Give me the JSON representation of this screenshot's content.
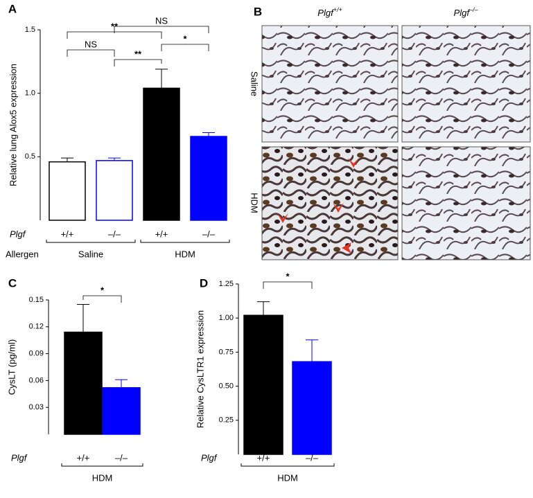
{
  "chart_data": [
    {
      "type": "bar",
      "panel": "A",
      "ylabel": "Relative lung Alox5 expression",
      "categories": [
        "+/+",
        "–/–",
        "+/+",
        "–/–"
      ],
      "row_label": "Plgf",
      "values": [
        0.46,
        0.47,
        1.04,
        0.66
      ],
      "errors": [
        0.03,
        0.02,
        0.15,
        0.03
      ],
      "fills": [
        "#ffffff",
        "#ffffff",
        "#000000",
        "#0000ff"
      ],
      "strokes": [
        "#000000",
        "#0000ff",
        "#000000",
        "#0000ff"
      ],
      "ylim": [
        0,
        1.5
      ],
      "yticks": [
        0.5,
        {
          "value": 1.0,
          "label": "1.0"
        },
        1.5
      ],
      "group_title": "Allergen",
      "groups": [
        {
          "label": "Saline",
          "members": [
            0,
            1
          ]
        },
        {
          "label": "HDM",
          "members": [
            2,
            3
          ]
        }
      ],
      "comparisons": [
        {
          "label": "**",
          "pair": [
            0,
            2
          ]
        },
        {
          "label": "NS",
          "pair": [
            1,
            3
          ]
        },
        {
          "label": "NS",
          "pair": [
            0,
            1
          ]
        },
        {
          "label": "**",
          "pair": [
            1,
            2
          ]
        },
        {
          "label": "*",
          "pair": [
            2,
            3
          ]
        }
      ]
    },
    {
      "type": "bar",
      "panel": "C",
      "ylabel": "CysLT (pg/ml)",
      "categories": [
        "+/+",
        "–/–"
      ],
      "row_label": "Plgf",
      "values": [
        0.114,
        0.052
      ],
      "errors": [
        0.031,
        0.009
      ],
      "fills": [
        "#000000",
        "#0000ff"
      ],
      "strokes": [
        "#000000",
        "#0000ff"
      ],
      "ylim": [
        0,
        0.15
      ],
      "yticks": [
        0.03,
        0.06,
        0.09,
        0.12,
        0.15
      ],
      "groups": [
        {
          "label": "HDM",
          "members": [
            0,
            1
          ]
        }
      ],
      "comparisons": [
        {
          "label": "*",
          "pair": [
            0,
            1
          ]
        }
      ]
    },
    {
      "type": "bar",
      "panel": "D",
      "ylabel": "Relative CysLTR1 expression",
      "categories": [
        "+/+",
        "–/–"
      ],
      "row_label": "Plgf",
      "values": [
        1.02,
        0.68
      ],
      "errors": [
        0.1,
        0.16
      ],
      "fills": [
        "#000000",
        "#0000ff"
      ],
      "strokes": [
        "#000000",
        "#0000ff"
      ],
      "ylim": [
        0,
        1.25
      ],
      "yticks": [
        0.25,
        {
          "value": 0.5,
          "label": "0.50"
        },
        0.75,
        {
          "value": 1.0,
          "label": "1.00"
        },
        1.25
      ],
      "groups": [
        {
          "label": "HDM",
          "members": [
            0,
            1
          ]
        }
      ],
      "comparisons": [
        {
          "label": "*",
          "pair": [
            0,
            1
          ]
        }
      ]
    }
  ],
  "micrographs": {
    "panel": "B",
    "gene": "Plgf",
    "columns": [
      "+/+",
      "–/–"
    ],
    "rows": [
      "Saline",
      "HDM"
    ]
  }
}
